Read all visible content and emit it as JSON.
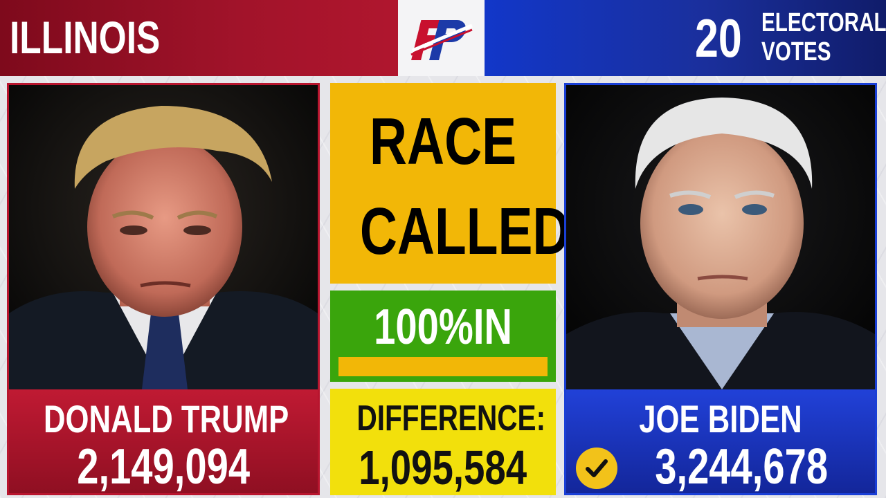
{
  "header": {
    "state": "ILLINOIS",
    "logo_text": "FP",
    "electoral_votes": "20",
    "electoral_label_line1": "ELECTORAL",
    "electoral_label_line2": "VOTES"
  },
  "candidates": {
    "left": {
      "name": "DONALD TRUMP",
      "votes": "2,149,094",
      "party_color": "#b8152e",
      "winner": false
    },
    "right": {
      "name": "JOE BIDEN",
      "votes": "3,244,678",
      "party_color": "#1a3fd6",
      "winner": true,
      "winner_icon": "check-icon"
    }
  },
  "race": {
    "status_line1": "RACE",
    "status_line2": "CALLED",
    "status_color": "#f2b707"
  },
  "reporting": {
    "label": "100%IN",
    "percent": 100,
    "color": "#3aa50c"
  },
  "difference": {
    "label": "DIFFERENCE:",
    "value": "1,095,584",
    "color": "#f2e00c"
  }
}
